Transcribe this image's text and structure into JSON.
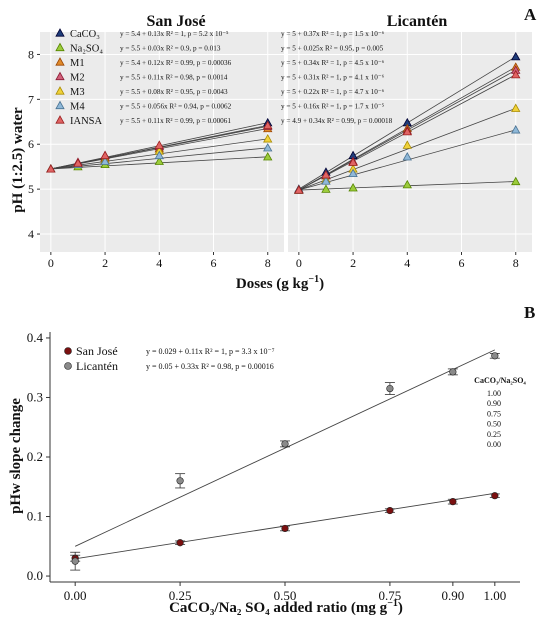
{
  "panel_a": {
    "label": "A",
    "ylabel": "pH (1:2.5) water",
    "xlabel_main": "Doses (g kg",
    "xlabel_sup": "−1",
    "xlabel_end": ")"
  },
  "panel_b": {
    "label": "B",
    "ylabel": "pHw slope change",
    "xlabel": "CaCO₃/Na₂ SO₄ added ratio (mg g",
    "xlabel_sup": "−1",
    "xlabel_end": ")",
    "side_legend_title": "CaCO₃/Na₂SO₄",
    "side_legend_values": [
      "1.00",
      "0.90",
      "0.75",
      "0.50",
      "0.25",
      "0.00"
    ]
  },
  "colors": {
    "CaCO3": "#1f3d7a",
    "Na2SO4": "#9ccc3c",
    "M1": "#e08a2a",
    "M2": "#d1607a",
    "M3": "#f0d23a",
    "M4": "#8fb8d8",
    "IANSA": "#e06464",
    "san_jose": "#7a1010",
    "licanten": "#8a8a8a"
  },
  "chart_data": [
    {
      "type": "scatter",
      "title": "San José",
      "xlabel": "Doses (g kg−1)",
      "ylabel": "pH (1:2.5) water",
      "x": [
        0,
        1,
        2,
        4,
        8
      ],
      "xticks": [
        "0",
        "2",
        "4",
        "6",
        "8"
      ],
      "xtick_values": [
        0,
        2,
        4,
        6,
        8
      ],
      "yticks": [
        "4",
        "5",
        "6",
        "7",
        "8"
      ],
      "ylim": [
        3.6,
        8.5
      ],
      "xlim": [
        -0.4,
        8.6
      ],
      "series": [
        {
          "name": "CaCO₃",
          "key": "CaCO3",
          "values": [
            5.45,
            5.55,
            5.7,
            5.95,
            6.48
          ],
          "equation": "y = 5.4 + 0.13x   R² = 1, p = 5.2 x 10⁻⁵"
        },
        {
          "name": "Na₂SO₄",
          "key": "Na2SO4",
          "values": [
            5.45,
            5.5,
            5.55,
            5.62,
            5.72
          ],
          "equation": "y = 5.5 + 0.03x   R² = 0.9, p = 0.013"
        },
        {
          "name": "M1",
          "key": "M1",
          "values": [
            5.45,
            5.55,
            5.7,
            5.9,
            6.35
          ],
          "equation": "y = 5.4 + 0.12x   R² = 0.99, p = 0.00036"
        },
        {
          "name": "M2",
          "key": "M2",
          "values": [
            5.45,
            5.6,
            5.75,
            5.95,
            6.4
          ],
          "equation": "y = 5.5 + 0.11x   R² = 0.98, p = 0.0014"
        },
        {
          "name": "M3",
          "key": "M3",
          "values": [
            5.45,
            5.55,
            5.65,
            5.85,
            6.12
          ],
          "equation": "y = 5.5 + 0.08x   R² = 0.95, p = 0.0043"
        },
        {
          "name": "M4",
          "key": "M4",
          "values": [
            5.45,
            5.55,
            5.62,
            5.75,
            5.92
          ],
          "equation": "y = 5.5 + 0.056x   R² = 0.94, p = 0.0062"
        },
        {
          "name": "IANSA",
          "key": "IANSA",
          "values": [
            5.45,
            5.58,
            5.75,
            5.98,
            6.42
          ],
          "equation": "y = 5.5 + 0.11x   R² = 0.99, p = 0.00061"
        }
      ]
    },
    {
      "type": "scatter",
      "title": "Licantén",
      "x": [
        0,
        1,
        2,
        4,
        8
      ],
      "xticks": [
        "0",
        "2",
        "4",
        "6",
        "8"
      ],
      "xtick_values": [
        0,
        2,
        4,
        6,
        8
      ],
      "ylim": [
        3.6,
        8.5
      ],
      "xlim": [
        -0.4,
        8.6
      ],
      "series": [
        {
          "name": "CaCO₃",
          "key": "CaCO3",
          "values": [
            5.0,
            5.38,
            5.75,
            6.48,
            7.95
          ],
          "equation": "y = 5 + 0.37x   R² = 1, p = 1.5 x 10⁻⁶"
        },
        {
          "name": "Na₂SO₄",
          "key": "Na2SO4",
          "values": [
            4.98,
            5.0,
            5.03,
            5.1,
            5.17
          ],
          "equation": "y = 5 + 0.025x   R² = 0.95, p = 0.005"
        },
        {
          "name": "M1",
          "key": "M1",
          "values": [
            4.98,
            5.3,
            5.6,
            6.35,
            7.72
          ],
          "equation": "y = 5 + 0.34x   R² = 1, p = 4.5 x 10⁻⁶"
        },
        {
          "name": "M2",
          "key": "M2",
          "values": [
            4.98,
            5.3,
            5.62,
            6.3,
            7.65
          ],
          "equation": "y = 5 + 0.31x   R² = 1, p = 4.1 x 10⁻⁶"
        },
        {
          "name": "M3",
          "key": "M3",
          "values": [
            4.98,
            5.22,
            5.45,
            5.98,
            6.8
          ],
          "equation": "y = 5 + 0.22x   R² = 1, p = 4.7 x 10⁻⁶"
        },
        {
          "name": "M4",
          "key": "M4",
          "values": [
            4.98,
            5.18,
            5.35,
            5.72,
            6.32
          ],
          "equation": "y = 5 + 0.16x   R² = 1, p = 1.7 x 10⁻⁵"
        },
        {
          "name": "IANSA",
          "key": "IANSA",
          "values": [
            4.98,
            5.32,
            5.6,
            6.28,
            7.55
          ],
          "equation": "y = 4.9 + 0.34x   R² = 0.99, p = 0.00018"
        }
      ]
    },
    {
      "type": "scatter",
      "title": "",
      "xlabel": "CaCO₃/Na₂ SO₄ added ratio (mg g−1)",
      "ylabel": "pHw slope change",
      "x": [
        0.0,
        0.25,
        0.5,
        0.75,
        0.9,
        1.0
      ],
      "xticks": [
        "0.00",
        "0.25",
        "0.50",
        "0.75",
        "0.90",
        "1.00"
      ],
      "xtick_values": [
        0.0,
        0.25,
        0.5,
        0.75,
        0.9,
        1.0
      ],
      "yticks": [
        "0.0",
        "0.1",
        "0.2",
        "0.3",
        "0.4"
      ],
      "ytick_values": [
        0.0,
        0.1,
        0.2,
        0.3,
        0.4
      ],
      "ylim": [
        -0.01,
        0.41
      ],
      "xlim": [
        -0.06,
        1.06
      ],
      "series": [
        {
          "name": "San José",
          "key": "san_jose",
          "values": [
            0.03,
            0.056,
            0.08,
            0.11,
            0.125,
            0.135
          ],
          "errors": [
            0.005,
            0.003,
            0.004,
            0.003,
            0.004,
            0.003
          ],
          "fit": [
            0.029,
            0.11
          ],
          "equation": "y = 0.029 + 0.11x   R² = 1, p = 3.3 x 10⁻⁷"
        },
        {
          "name": "Licantén",
          "key": "licanten",
          "values": [
            0.025,
            0.16,
            0.222,
            0.315,
            0.343,
            0.37
          ],
          "errors": [
            0.015,
            0.012,
            0.005,
            0.01,
            0.005,
            0.004
          ],
          "fit": [
            0.05,
            0.33
          ],
          "equation": "y = 0.05 + 0.33x   R² = 0.98, p = 0.00016"
        }
      ]
    }
  ]
}
